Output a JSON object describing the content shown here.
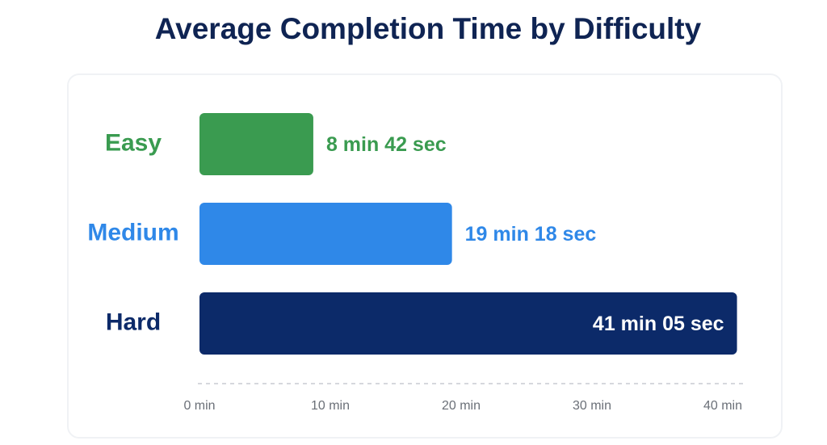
{
  "chart_data": {
    "type": "hbar",
    "title": "Average Completion Time by Difficulty",
    "categories": [
      "Easy",
      "Medium",
      "Hard"
    ],
    "values": [
      8.7,
      19.3,
      41.0833
    ],
    "value_labels": [
      "8 min 42 sec",
      "19 min 18 sec",
      "41 min 05 sec"
    ],
    "colors": [
      "#3a9b50",
      "#2f88e8",
      "#0c2a69"
    ],
    "xlim": [
      0,
      40
    ],
    "xticks": [
      {
        "value": 0,
        "label": "0 min"
      },
      {
        "value": 10,
        "label": "10 min"
      },
      {
        "value": 20,
        "label": "20 min"
      },
      {
        "value": 30,
        "label": "30 min"
      },
      {
        "value": 40,
        "label": "40 min"
      }
    ]
  }
}
